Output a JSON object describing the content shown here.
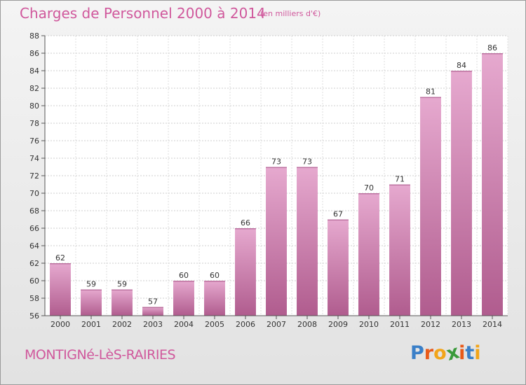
{
  "header": {
    "title": "Charges de Personnel 2000 à 2014",
    "subtitle": "(en milliers d'€)"
  },
  "footer": {
    "town": "MONTIGNé-LèS-RAIRIES",
    "logo_letters": [
      {
        "char": "P",
        "color": "#3a7fc8"
      },
      {
        "char": "r",
        "color": "#e85a1a"
      },
      {
        "char": "o",
        "color": "#f2a51a"
      },
      {
        "char": "x",
        "color": "#3a9a3a"
      },
      {
        "char": "i",
        "color": "#e85a1a"
      },
      {
        "char": "t",
        "color": "#3a7fc8"
      },
      {
        "char": "i",
        "color": "#f2a51a"
      }
    ]
  },
  "colors": {
    "accent": "#d0589c",
    "bar_light": "#e6a9cf",
    "bar_dark": "#b05c8e"
  },
  "chart_data": {
    "type": "bar",
    "categories": [
      "2000",
      "2001",
      "2002",
      "2003",
      "2004",
      "2005",
      "2006",
      "2007",
      "2008",
      "2009",
      "2010",
      "2011",
      "2012",
      "2013",
      "2014"
    ],
    "values": [
      62,
      59,
      59,
      57,
      60,
      60,
      66,
      73,
      73,
      67,
      70,
      71,
      81,
      84,
      86
    ],
    "ylim": [
      56,
      88
    ],
    "yticks": [
      56,
      58,
      60,
      62,
      64,
      66,
      68,
      70,
      72,
      74,
      76,
      78,
      80,
      82,
      84,
      86,
      88
    ],
    "grid": true
  }
}
